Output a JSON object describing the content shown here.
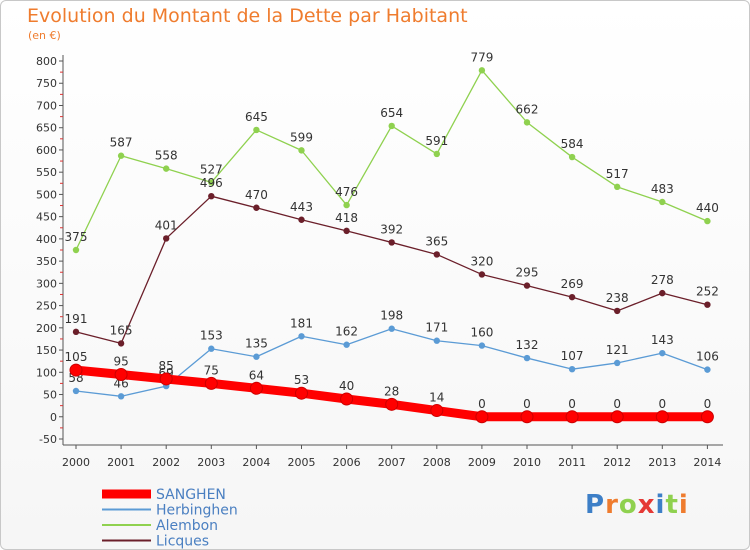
{
  "title": "Evolution du Montant de la Dette par Habitant",
  "unit_label": "(en €)",
  "logo_text": "Proxiti",
  "colors": {
    "title": "#ef7c2e",
    "SANGHEN": "#ff0000",
    "Herbinghen": "#5b9bd5",
    "Alembon": "#8fd14f",
    "Licques": "#6b1f2a"
  },
  "chart_data": {
    "type": "line",
    "x": [
      "2000",
      "2001",
      "2002",
      "2003",
      "2004",
      "2005",
      "2006",
      "2007",
      "2008",
      "2009",
      "2010",
      "2011",
      "2012",
      "2013",
      "2014"
    ],
    "ylim": [
      -50,
      800
    ],
    "yticks": [
      -50,
      0,
      50,
      100,
      150,
      200,
      250,
      300,
      350,
      400,
      450,
      500,
      550,
      600,
      650,
      700,
      750,
      800
    ],
    "grid": false,
    "legend": "bottom-left",
    "series": [
      {
        "name": "SANGHEN",
        "values": [
          105,
          95,
          85,
          75,
          64,
          53,
          40,
          28,
          14,
          0,
          0,
          0,
          0,
          0,
          0
        ]
      },
      {
        "name": "Herbinghen",
        "values": [
          58,
          46,
          69,
          153,
          135,
          181,
          162,
          198,
          171,
          160,
          132,
          107,
          121,
          143,
          106
        ]
      },
      {
        "name": "Alembon",
        "values": [
          375,
          587,
          558,
          527,
          645,
          599,
          476,
          654,
          591,
          779,
          662,
          584,
          517,
          483,
          440
        ]
      },
      {
        "name": "Licques",
        "values": [
          191,
          165,
          401,
          496,
          470,
          443,
          418,
          392,
          365,
          320,
          295,
          269,
          238,
          278,
          252
        ]
      }
    ]
  }
}
